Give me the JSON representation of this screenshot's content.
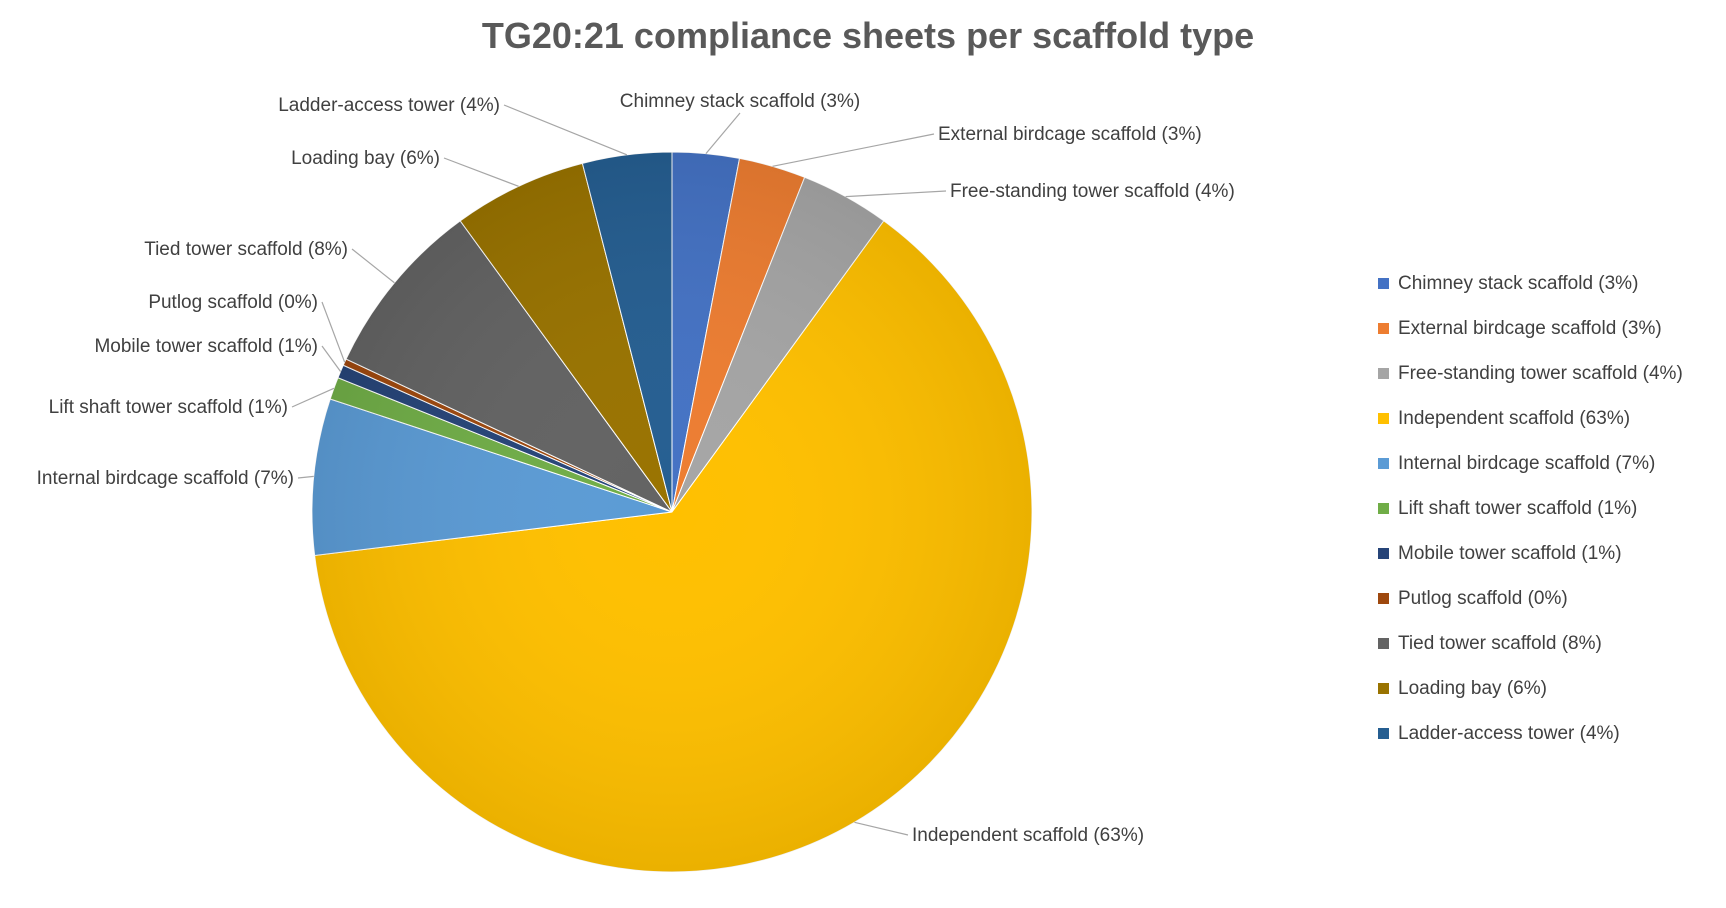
{
  "chart_data": {
    "type": "pie",
    "title": "TG20:21 compliance sheets per scaffold type",
    "legend_position": "right",
    "slices": [
      {
        "name": "Chimney stack scaffold",
        "value": 3,
        "label": "Chimney stack scaffold (3%)",
        "color": "#4472C4"
      },
      {
        "name": "External birdcage scaffold",
        "value": 3,
        "label": "External birdcage scaffold (3%)",
        "color": "#ED7D31"
      },
      {
        "name": "Free-standing tower scaffold",
        "value": 4,
        "label": "Free-standing tower scaffold (4%)",
        "color": "#A5A5A5"
      },
      {
        "name": "Independent scaffold",
        "value": 63,
        "label": "Independent scaffold (63%)",
        "color": "#FFC000"
      },
      {
        "name": "Internal birdcage scaffold",
        "value": 7,
        "label": "Internal birdcage scaffold (7%)",
        "color": "#5B9BD5"
      },
      {
        "name": "Lift shaft tower scaffold",
        "value": 1,
        "label": "Lift shaft tower scaffold (1%)",
        "color": "#70AD47"
      },
      {
        "name": "Mobile tower scaffold",
        "value": 0.6,
        "label": "Mobile tower scaffold (1%)",
        "color": "#264478"
      },
      {
        "name": "Putlog scaffold",
        "value": 0.3,
        "label": "Putlog scaffold (0%)",
        "color": "#9E480E"
      },
      {
        "name": "Tied tower scaffold",
        "value": 8,
        "label": "Tied tower scaffold (8%)",
        "color": "#636363"
      },
      {
        "name": "Loading bay",
        "value": 6,
        "label": "Loading bay (6%)",
        "color": "#997300"
      },
      {
        "name": "Ladder-access tower",
        "value": 4,
        "label": "Ladder-access tower (4%)",
        "color": "#255E91"
      }
    ]
  }
}
